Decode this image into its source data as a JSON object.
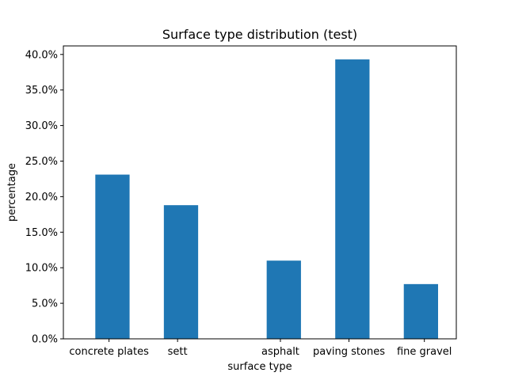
{
  "chart_data": {
    "type": "bar",
    "title": "Surface type distribution (test)",
    "xlabel": "surface type",
    "ylabel": "percentage",
    "bar_color": "#1f77b4",
    "ylim": [
      0,
      41.2
    ],
    "yticks": [
      0,
      5,
      10,
      15,
      20,
      25,
      30,
      35,
      40
    ],
    "ytick_labels": [
      "0.0%",
      "5.0%",
      "10.0%",
      "15.0%",
      "20.0%",
      "25.0%",
      "30.0%",
      "35.0%",
      "40.0%"
    ],
    "xlim": [
      0,
      5.2
    ],
    "xtick_positions": [
      0.4,
      1.4,
      2.9,
      3.9,
      5.0
    ],
    "categories": [
      "concrete plates",
      "sett",
      "asphalt",
      "paving stones",
      "fine gravel"
    ],
    "bars": [
      {
        "label": "concrete plates",
        "value": 23.1,
        "x_start": 0.2,
        "x_end": 0.7
      },
      {
        "label": "sett",
        "value": 18.8,
        "x_start": 1.2,
        "x_end": 1.7
      },
      {
        "label": "asphalt",
        "value": 11.0,
        "x_start": 2.7,
        "x_end": 3.2
      },
      {
        "label": "paving stones",
        "value": 39.3,
        "x_start": 3.7,
        "x_end": 4.2
      },
      {
        "label": "fine gravel",
        "value": 7.7,
        "x_start": 4.7,
        "x_end": 5.2
      }
    ],
    "grid": false,
    "legend": "none"
  }
}
